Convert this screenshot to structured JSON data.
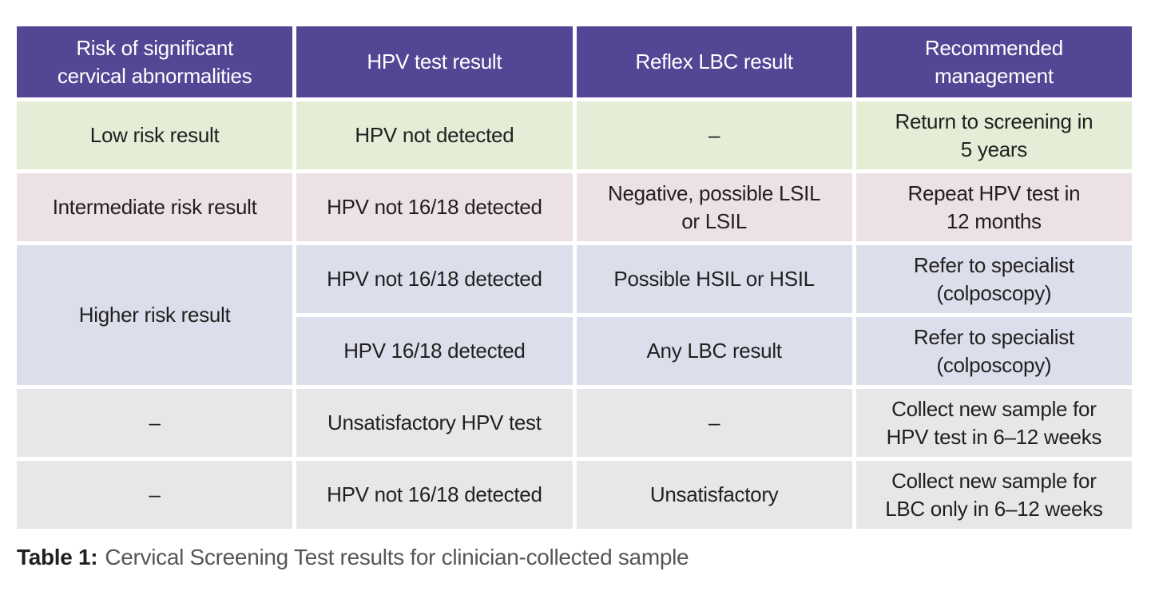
{
  "table": {
    "headers": [
      "Risk of significant\ncervical abnormalities",
      "HPV test result",
      "Reflex LBC result",
      "Recommended\nmanagement"
    ],
    "rows": [
      {
        "theme": "green",
        "cells": [
          "Low risk result",
          "HPV not detected",
          "–",
          "Return to screening in\n5 years"
        ]
      },
      {
        "theme": "pink",
        "cells": [
          "Intermediate risk result",
          "HPV not 16/18 detected",
          "Negative, possible LSIL\nor LSIL",
          "Repeat HPV test in\n12 months"
        ]
      },
      {
        "theme": "lavender",
        "risk_cell": "Higher risk result",
        "risk_cell_rowspan": 2,
        "cells": [
          "HPV not 16/18 detected",
          "Possible HSIL or HSIL",
          "Refer to specialist\n(colposcopy)"
        ]
      },
      {
        "theme": "lavender",
        "cells": [
          "HPV 16/18 detected",
          "Any LBC result",
          "Refer to specialist\n(colposcopy)"
        ]
      },
      {
        "theme": "grey",
        "cells": [
          "–",
          "Unsatisfactory HPV test",
          "–",
          "Collect new sample for\nHPV test in 6–12 weeks"
        ]
      },
      {
        "theme": "grey",
        "cells": [
          "–",
          "HPV not 16/18 detected",
          "Unsatisfactory",
          "Collect new sample for\nLBC only in 6–12 weeks"
        ]
      }
    ]
  },
  "caption": {
    "label": "Table 1:",
    "text": "Cervical Screening Test results for clinician-collected sample"
  },
  "colors": {
    "header_bg": "#534795",
    "header_text": "#FFFFFF",
    "row_green": "#E4EED7",
    "row_pink": "#ECE1E5",
    "row_lavender": "#DBDFEC",
    "row_grey": "#E6E7E9",
    "body_text": "#231F20",
    "caption_text": "#55565A"
  }
}
